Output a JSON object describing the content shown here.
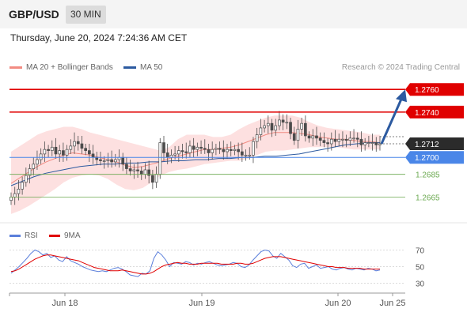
{
  "header": {
    "symbol": "GBP/USD",
    "timeframe": "30 MIN"
  },
  "datetime": "Thursday, June 20, 2024 7:24:36 AM CET",
  "credit": "Research © 2024 Trading Central",
  "legend": {
    "ma20": {
      "label": "MA 20 + Bollinger Bands",
      "color": "#f28b82"
    },
    "ma50": {
      "label": "MA 50",
      "color": "#2c5aa0"
    }
  },
  "rsi_legend": {
    "rsi": {
      "label": "RSI",
      "color": "#5b7fdb"
    },
    "ma9": {
      "label": "9MA",
      "color": "#e00000"
    }
  },
  "colors": {
    "up": "#4c4c4c",
    "down": "#4c4c4c",
    "bollinger_fill": "#fde0e0",
    "resistance": "#e00000",
    "pivot": "#4a86e8",
    "support": "#6aa84f",
    "arrow": "#2c5aa0"
  },
  "chart_data": [
    {
      "type": "candlestick",
      "x_tick_labels": [
        "Jun 18",
        "Jun 19",
        "Jun 20",
        "Jun 25"
      ],
      "ylim": [
        1.2652,
        1.2772
      ],
      "current_price": "1.2712",
      "levels": [
        {
          "value": 1.276,
          "label": "1.2760",
          "kind": "resistance"
        },
        {
          "value": 1.274,
          "label": "1.2740",
          "kind": "resistance"
        },
        {
          "value": 1.27,
          "label": "1.2700",
          "kind": "pivot"
        },
        {
          "value": 1.2685,
          "label": "1.2685",
          "kind": "support"
        },
        {
          "value": 1.2665,
          "label": "1.2665",
          "kind": "support"
        }
      ],
      "close": [
        1.2665,
        1.2668,
        1.2672,
        1.2678,
        1.2684,
        1.269,
        1.2694,
        1.2698,
        1.2703,
        1.2707,
        1.2706,
        1.2709,
        1.2703,
        1.2706,
        1.2702,
        1.2707,
        1.271,
        1.2714,
        1.2712,
        1.2708,
        1.2706,
        1.2703,
        1.27,
        1.2698,
        1.2697,
        1.2697,
        1.2698,
        1.2696,
        1.2698,
        1.27,
        1.2694,
        1.269,
        1.2688,
        1.2689,
        1.2688,
        1.2685,
        1.2689,
        1.2684,
        1.2678,
        1.2685,
        1.2713,
        1.2704,
        1.27,
        1.2702,
        1.2703,
        1.2706,
        1.2705,
        1.2704,
        1.271,
        1.2707,
        1.2709,
        1.2708,
        1.2707,
        1.2704,
        1.2707,
        1.2708,
        1.2707,
        1.2705,
        1.2707,
        1.2706,
        1.2707,
        1.2705,
        1.2702,
        1.2702,
        1.2702,
        1.2714,
        1.272,
        1.2726,
        1.2728,
        1.273,
        1.2724,
        1.2728,
        1.2733,
        1.2731,
        1.2731,
        1.2721,
        1.2715,
        1.2725,
        1.273,
        1.2719,
        1.2717,
        1.2719,
        1.2717,
        1.2715,
        1.2713,
        1.2712,
        1.2716,
        1.2714,
        1.2716,
        1.2716,
        1.2715,
        1.2717,
        1.2717,
        1.2716,
        1.2711,
        1.2713,
        1.2713,
        1.2713,
        1.2711,
        1.2712
      ],
      "ma20_up": [
        1.2705,
        1.271,
        1.2715,
        1.272,
        1.2723,
        1.2725,
        1.2727,
        1.2727,
        1.2725,
        1.2722,
        1.272,
        1.2718,
        1.2716,
        1.2714,
        1.2712,
        1.271,
        1.2708,
        1.2706,
        1.2709,
        1.2716,
        1.272,
        1.272,
        1.272,
        1.2718,
        1.2718,
        1.272,
        1.2725,
        1.2729,
        1.2732,
        1.2735,
        1.2737,
        1.2737,
        1.2737,
        1.2735,
        1.2731,
        1.2728,
        1.2726,
        1.2725,
        1.2724,
        1.2723,
        1.2722,
        1.272,
        1.272
      ],
      "ma20_dn": [
        1.265,
        1.2653,
        1.2657,
        1.2662,
        1.2667,
        1.2672,
        1.2678,
        1.2682,
        1.2684,
        1.2685,
        1.2684,
        1.2681,
        1.2676,
        1.2672,
        1.2671,
        1.2673,
        1.2678,
        1.2684,
        1.2687,
        1.2689,
        1.269,
        1.2692,
        1.2694,
        1.2695,
        1.2696,
        1.2697,
        1.2697,
        1.2699,
        1.2702,
        1.2705,
        1.2706,
        1.2706,
        1.2707,
        1.2708,
        1.2709,
        1.2709,
        1.2709,
        1.2709,
        1.2708,
        1.2707,
        1.2707,
        1.2707,
        1.2707
      ],
      "ma20_mid": [
        1.2677,
        1.2682,
        1.2687,
        1.2692,
        1.2696,
        1.2699,
        1.2702,
        1.2704,
        1.2703,
        1.2702,
        1.27,
        1.2698,
        1.2696,
        1.2693,
        1.2691,
        1.2692,
        1.2694,
        1.2696,
        1.2699,
        1.2701,
        1.2703,
        1.2705,
        1.2707,
        1.2707,
        1.2708,
        1.2709,
        1.2711,
        1.2714,
        1.2717,
        1.272,
        1.2722,
        1.2722,
        1.2722,
        1.2721,
        1.272,
        1.2718,
        1.2717,
        1.2716,
        1.2716,
        1.2715,
        1.2714,
        1.2714,
        1.2713
      ],
      "ma50": [
        1.2675,
        1.2679,
        1.2683,
        1.2686,
        1.2688,
        1.269,
        1.2692,
        1.2693,
        1.2694,
        1.2694,
        1.2695,
        1.2695,
        1.2696,
        1.2696,
        1.2697,
        1.2697,
        1.2698,
        1.2698,
        1.2699,
        1.2699,
        1.27,
        1.27,
        1.2701,
        1.2701,
        1.2702,
        1.2703,
        1.2705,
        1.2707,
        1.2709,
        1.2711,
        1.2712,
        1.2713,
        1.2713
      ],
      "projection": {
        "from": 1.2712,
        "to": 1.276
      }
    },
    {
      "type": "line",
      "name": "RSI",
      "y_tick_labels": [
        "70",
        "50",
        "30"
      ],
      "ylim": [
        20,
        80
      ],
      "rsi": [
        42,
        46,
        50,
        55,
        60,
        66,
        70,
        68,
        64,
        66,
        61,
        63,
        58,
        56,
        62,
        57,
        55,
        53,
        50,
        48,
        46,
        45,
        44,
        45,
        44,
        46,
        48,
        49,
        47,
        44,
        40,
        39,
        38,
        42,
        41,
        45,
        60,
        68,
        64,
        58,
        50,
        55,
        54,
        53,
        56,
        55,
        52,
        54,
        53,
        55,
        56,
        54,
        52,
        51,
        52,
        53,
        55,
        54,
        50,
        49,
        52,
        58,
        63,
        68,
        70,
        69,
        63,
        60,
        66,
        62,
        58,
        51,
        49,
        53,
        54,
        48,
        50,
        52,
        48,
        49,
        50,
        47,
        46,
        48,
        49,
        47,
        46,
        48,
        47,
        46,
        48,
        47,
        45,
        46
      ],
      "ma9": [
        44,
        45,
        47,
        50,
        53,
        56,
        59,
        61,
        63,
        64,
        64,
        63,
        62,
        61,
        60,
        59,
        58,
        57,
        55,
        53,
        51,
        49,
        48,
        47,
        46,
        45,
        45,
        45,
        46,
        45,
        44,
        43,
        42,
        41,
        41,
        42,
        44,
        47,
        50,
        52,
        53,
        54,
        55,
        54,
        54,
        53,
        53,
        53,
        54,
        54,
        54,
        54,
        54,
        53,
        53,
        53,
        53,
        54,
        54,
        53,
        53,
        54,
        56,
        58,
        60,
        61,
        62,
        62,
        62,
        61,
        60,
        59,
        58,
        57,
        56,
        55,
        54,
        53,
        52,
        51,
        50,
        50,
        49,
        49,
        49,
        48,
        48,
        48,
        48,
        47,
        47,
        47,
        47,
        47
      ]
    }
  ]
}
